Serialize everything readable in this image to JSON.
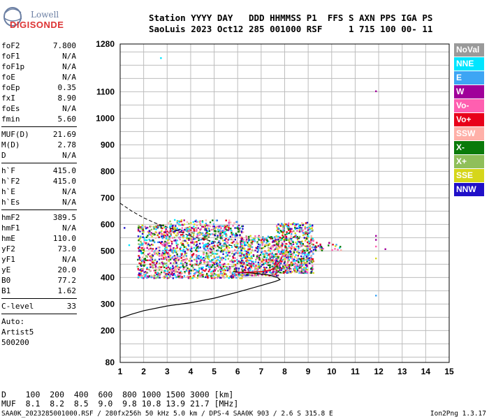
{
  "logo": {
    "line1": "Lowell",
    "line2": "DIGISONDE"
  },
  "header": {
    "line1": "Station YYYY DAY   DDD HHMMSS P1  FFS S AXN PPS IGA PS",
    "line2": "SaoLuis 2023 Oct12 285 001000 RSF     1 715 100 00- 11"
  },
  "params_groups": [
    [
      {
        "label": "foF2",
        "value": "7.800"
      },
      {
        "label": "foF1",
        "value": "N/A"
      },
      {
        "label": "foF1p",
        "value": "N/A"
      },
      {
        "label": "foE",
        "value": "N/A"
      },
      {
        "label": "foEp",
        "value": "0.35"
      },
      {
        "label": "fxI",
        "value": "8.90"
      },
      {
        "label": "foEs",
        "value": "N/A"
      },
      {
        "label": "fmin",
        "value": "5.60"
      }
    ],
    [
      {
        "label": "MUF(D)",
        "value": "21.69"
      },
      {
        "label": "M(D)",
        "value": "2.78"
      },
      {
        "label": "D",
        "value": "N/A"
      }
    ],
    [
      {
        "label": "h`F",
        "value": "415.0"
      },
      {
        "label": "h`F2",
        "value": "415.0"
      },
      {
        "label": "h`E",
        "value": "N/A"
      },
      {
        "label": "h`Es",
        "value": "N/A"
      }
    ],
    [
      {
        "label": "hmF2",
        "value": "389.5"
      },
      {
        "label": "hmF1",
        "value": "N/A"
      },
      {
        "label": "hmE",
        "value": "110.0"
      },
      {
        "label": "yF2",
        "value": "73.0"
      },
      {
        "label": "yF1",
        "value": "N/A"
      },
      {
        "label": "yE",
        "value": "20.0"
      },
      {
        "label": "B0",
        "value": "77.2"
      },
      {
        "label": "B1",
        "value": "1.62"
      }
    ],
    [
      {
        "label": "C-level",
        "value": "33"
      }
    ]
  ],
  "auto": {
    "line1": "Auto:",
    "line2": "Artist5",
    "line3": "500200"
  },
  "legend": [
    {
      "label": "NoVal",
      "color": "#9a9a9a"
    },
    {
      "label": "NNE",
      "color": "#00e5ff"
    },
    {
      "label": "E",
      "color": "#3da5f4"
    },
    {
      "label": "W",
      "color": "#a0009a"
    },
    {
      "label": "Vo-",
      "color": "#ff5fb0"
    },
    {
      "label": "Vo+",
      "color": "#e8001a"
    },
    {
      "label": "SSW",
      "color": "#ffb0a8"
    },
    {
      "label": "X-",
      "color": "#0a7a0a"
    },
    {
      "label": "X+",
      "color": "#8fbf5a"
    },
    {
      "label": "SSE",
      "color": "#d6d61a"
    },
    {
      "label": "NNW",
      "color": "#2010c8"
    }
  ],
  "dmuf": {
    "line1": "D    100  200  400  600  800 1000 1500 3000 [km]",
    "line2": "MUF  8.1  8.2  8.5  9.0  9.8 10.8 13.9 21.7 [MHz]"
  },
  "footer": {
    "left": "SAA0K_2023285001000.RSF / 280fx256h 50 kHz 5.0 km / DPS-4 SAA0K 903 / 2.6 S 315.8 E",
    "right": "Ion2Png 1.3.17"
  },
  "chart_data": {
    "type": "scatter",
    "title": "",
    "xlabel": "",
    "ylabel": "",
    "xlim": [
      1,
      15
    ],
    "ylim": [
      80,
      1280
    ],
    "x_ticks": [
      1,
      2,
      3,
      4,
      5,
      6,
      7,
      8,
      9,
      10,
      11,
      12,
      13,
      14,
      15
    ],
    "y_ticks": [
      80,
      200,
      300,
      400,
      500,
      600,
      700,
      800,
      900,
      1000,
      1100,
      1280
    ],
    "grid": true,
    "legend_placement": "right",
    "clusters": [
      {
        "x_range": [
          1.7,
          6.2
        ],
        "y_range": [
          400,
          600
        ],
        "density": 1400
      },
      {
        "x_range": [
          2.7,
          6.0
        ],
        "y_range": [
          560,
          620
        ],
        "density": 160
      },
      {
        "x_range": [
          6.1,
          7.7
        ],
        "y_range": [
          410,
          560
        ],
        "density": 520
      },
      {
        "x_range": [
          7.6,
          9.2
        ],
        "y_range": [
          420,
          610
        ],
        "density": 650
      },
      {
        "x_range": [
          9.2,
          10.5
        ],
        "y_range": [
          505,
          535
        ],
        "density": 30
      }
    ],
    "isolated_points": [
      {
        "x": 2.7,
        "y": 1230,
        "color": "#00e5ff"
      },
      {
        "x": 11.85,
        "y": 1105,
        "color": "#a0009a"
      },
      {
        "x": 11.85,
        "y": 335,
        "color": "#3da5f4"
      },
      {
        "x": 1.15,
        "y": 590,
        "color": "#2010c8"
      },
      {
        "x": 1.35,
        "y": 525,
        "color": "#00e5ff"
      },
      {
        "x": 11.85,
        "y": 560,
        "color": "#a0009a"
      },
      {
        "x": 11.85,
        "y": 545,
        "color": "#a0009a"
      },
      {
        "x": 11.85,
        "y": 520,
        "color": "#ff5fb0"
      },
      {
        "x": 11.85,
        "y": 475,
        "color": "#d6d61a"
      },
      {
        "x": 12.25,
        "y": 510,
        "color": "#a0009a"
      }
    ],
    "profile_curve": [
      [
        1,
        247
      ],
      [
        1.5,
        262
      ],
      [
        2,
        275
      ],
      [
        3,
        293
      ],
      [
        4,
        305
      ],
      [
        5,
        322
      ],
      [
        6,
        345
      ],
      [
        7,
        370
      ],
      [
        7.6,
        385
      ],
      [
        7.8,
        392
      ],
      [
        7.7,
        400
      ],
      [
        7.3,
        410
      ],
      [
        6.5,
        418
      ],
      [
        5.8,
        422
      ]
    ],
    "trace_solid": [
      [
        6.0,
        420
      ],
      [
        6.5,
        420
      ],
      [
        7.0,
        422
      ],
      [
        7.4,
        428
      ],
      [
        7.6,
        440
      ],
      [
        7.8,
        460
      ],
      [
        7.9,
        480
      ]
    ],
    "trace_dashed": [
      [
        1,
        680
      ],
      [
        1.5,
        650
      ],
      [
        2,
        625
      ],
      [
        2.5,
        605
      ],
      [
        3,
        590
      ],
      [
        3.5,
        575
      ],
      [
        4,
        555
      ],
      [
        5,
        535
      ],
      [
        6,
        515
      ]
    ]
  }
}
